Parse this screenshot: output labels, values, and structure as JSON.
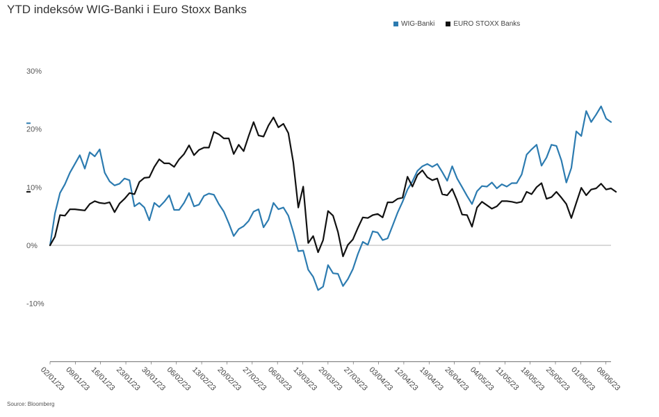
{
  "header": {
    "title": "YTD indeksów WIG-Banki i Euro Stoxx Banks"
  },
  "footer": {
    "source": "Source: Bloomberg"
  },
  "colors": {
    "wig": "#2c7bb0",
    "stoxx": "#111111",
    "zero": "#9a9a9a",
    "axis": "#555555"
  },
  "chart_data": {
    "type": "line",
    "title": "YTD indeksów WIG-Banki i Euro Stoxx Banks",
    "xlabel": "",
    "ylabel": "",
    "ylim": [
      -20,
      35
    ],
    "yticks": [
      30,
      20,
      10,
      0,
      -10
    ],
    "ytick_labels": [
      "30%",
      "20%",
      "10%",
      "0%",
      "-10%"
    ],
    "grid": false,
    "legend_position": "top-right",
    "x_tick_labels": [
      "02/01/23",
      "09/01/23",
      "16/01/23",
      "23/01/23",
      "30/01/23",
      "06/02/23",
      "13/02/23",
      "20/02/23",
      "27/02/23",
      "06/03/23",
      "13/03/23",
      "20/03/23",
      "27/03/23",
      "03/04/23",
      "12/04/23",
      "19/04/23",
      "26/04/23",
      "04/05/23",
      "11/05/23",
      "18/05/23",
      "25/05/23",
      "01/06/23",
      "08/06/23"
    ],
    "series": [
      {
        "name": "WIG-Banki",
        "last_value": 21,
        "values": [
          0,
          5.5,
          9,
          10.5,
          12.5,
          14,
          15.5,
          13.2,
          16,
          15.3,
          16.5,
          12.5,
          11,
          10.3,
          10.6,
          11.5,
          11.2,
          6.7,
          7.3,
          6.5,
          4.3,
          7.3,
          6.6,
          7.5,
          8.6,
          6.1,
          6.1,
          7.3,
          9,
          6.7,
          7,
          8.5,
          8.9,
          8.7,
          7.1,
          5.8,
          3.8,
          1.6,
          2.8,
          3.3,
          4.2,
          5.8,
          6.2,
          3.1,
          4.4,
          7.3,
          6.2,
          6.5,
          5.1,
          2.3,
          -1,
          -0.9,
          -4.2,
          -5.4,
          -7.7,
          -7.1,
          -3.4,
          -4.8,
          -4.9,
          -7,
          -5.8,
          -4.1,
          -1.5,
          0.6,
          0.1,
          2.4,
          2.2,
          0.9,
          1.2,
          3.4,
          5.6,
          7.5,
          9.6,
          11,
          12.8,
          13.6,
          14,
          13.5,
          14,
          12.6,
          11.1,
          13.6,
          11.5,
          10,
          8.5,
          7.1,
          9.3,
          10.2,
          10.1,
          10.8,
          9.8,
          10.5,
          10.1,
          10.7,
          10.7,
          12.2,
          15.6,
          16.5,
          17.3,
          13.7,
          15.1,
          17.3,
          17.1,
          14.6,
          10.8,
          13.3,
          19.6,
          18.8,
          23.1,
          21.2,
          22.5,
          23.9,
          21.8,
          21.2
        ]
      },
      {
        "name": "EURO STOXX Banks",
        "last_value": 9.2,
        "values": [
          0,
          1.5,
          5.2,
          5.1,
          6.2,
          6.2,
          6.1,
          6,
          7.1,
          7.6,
          7.3,
          7.2,
          7.4,
          5.7,
          7.2,
          8,
          9,
          8.8,
          10.9,
          11.6,
          11.7,
          13.5,
          14.8,
          14.1,
          14.1,
          13.5,
          14.8,
          15.7,
          17.2,
          15.5,
          16.4,
          16.8,
          16.8,
          19.5,
          19.1,
          18.4,
          18.4,
          15.7,
          17.3,
          16.2,
          18.8,
          21.2,
          18.9,
          18.7,
          20.6,
          22,
          20.3,
          20.9,
          19.3,
          14.3,
          6.5,
          10.1,
          0.4,
          1.6,
          -1.2,
          0.9,
          5.9,
          5.1,
          2.3,
          -1.9,
          0.1,
          1,
          3,
          4.8,
          4.7,
          5.2,
          5.4,
          4.8,
          7.4,
          7.4,
          8,
          8.2,
          11.8,
          10.1,
          12.1,
          12.9,
          11.7,
          11.2,
          11.5,
          8.8,
          8.6,
          9.7,
          7.7,
          5.3,
          5.2,
          3.2,
          6.5,
          7.5,
          6.9,
          6.3,
          6.7,
          7.6,
          7.6,
          7.5,
          7.3,
          7.5,
          9.2,
          8.8,
          10,
          10.7,
          8,
          8.3,
          9.2,
          8.2,
          7.1,
          4.7,
          7.3,
          9.9,
          8.6,
          9.6,
          9.8,
          10.6,
          9.6,
          9.8,
          9.2
        ]
      }
    ]
  }
}
